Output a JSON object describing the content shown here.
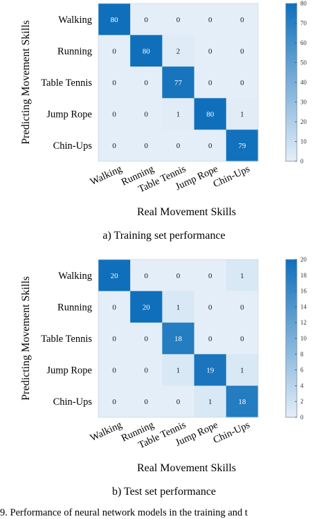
{
  "chart_data": [
    {
      "type": "heatmap",
      "title": "a) Training set performance",
      "xlabel": "Real Movement Skills",
      "ylabel": "Predicting Movement Skills",
      "x_categories": [
        "Walking",
        "Running",
        "Table Tennis",
        "Jump Rope",
        "Chin-Ups"
      ],
      "y_categories": [
        "Walking",
        "Running",
        "Table Tennis",
        "Jump Rope",
        "Chin-Ups"
      ],
      "values": [
        [
          80,
          0,
          0,
          0,
          0
        ],
        [
          0,
          80,
          2,
          0,
          0
        ],
        [
          0,
          0,
          77,
          0,
          0
        ],
        [
          0,
          0,
          1,
          80,
          1
        ],
        [
          0,
          0,
          0,
          0,
          79
        ]
      ],
      "colorbar": {
        "range": [
          0,
          80
        ],
        "ticks": [
          0,
          10,
          20,
          30,
          40,
          50,
          60,
          70,
          80
        ]
      }
    },
    {
      "type": "heatmap",
      "title": "b) Test set performance",
      "xlabel": "Real Movement Skills",
      "ylabel": "Predicting Movement Skills",
      "x_categories": [
        "Walking",
        "Running",
        "Table Tennis",
        "Jump Rope",
        "Chin-Ups"
      ],
      "y_categories": [
        "Walking",
        "Running",
        "Table Tennis",
        "Jump Rope",
        "Chin-Ups"
      ],
      "values": [
        [
          20,
          0,
          0,
          0,
          1
        ],
        [
          0,
          20,
          1,
          0,
          0
        ],
        [
          0,
          0,
          18,
          0,
          0
        ],
        [
          0,
          0,
          1,
          19,
          1
        ],
        [
          0,
          0,
          0,
          1,
          18
        ]
      ],
      "colorbar": {
        "range": [
          0,
          20
        ],
        "ticks": [
          0,
          2,
          4,
          6,
          8,
          10,
          12,
          14,
          16,
          18,
          20
        ]
      }
    }
  ],
  "colors": {
    "low": "#e4eef8",
    "high": "#0f6fbb"
  },
  "figure_caption": "9. Performance of neural network models in the training and t"
}
